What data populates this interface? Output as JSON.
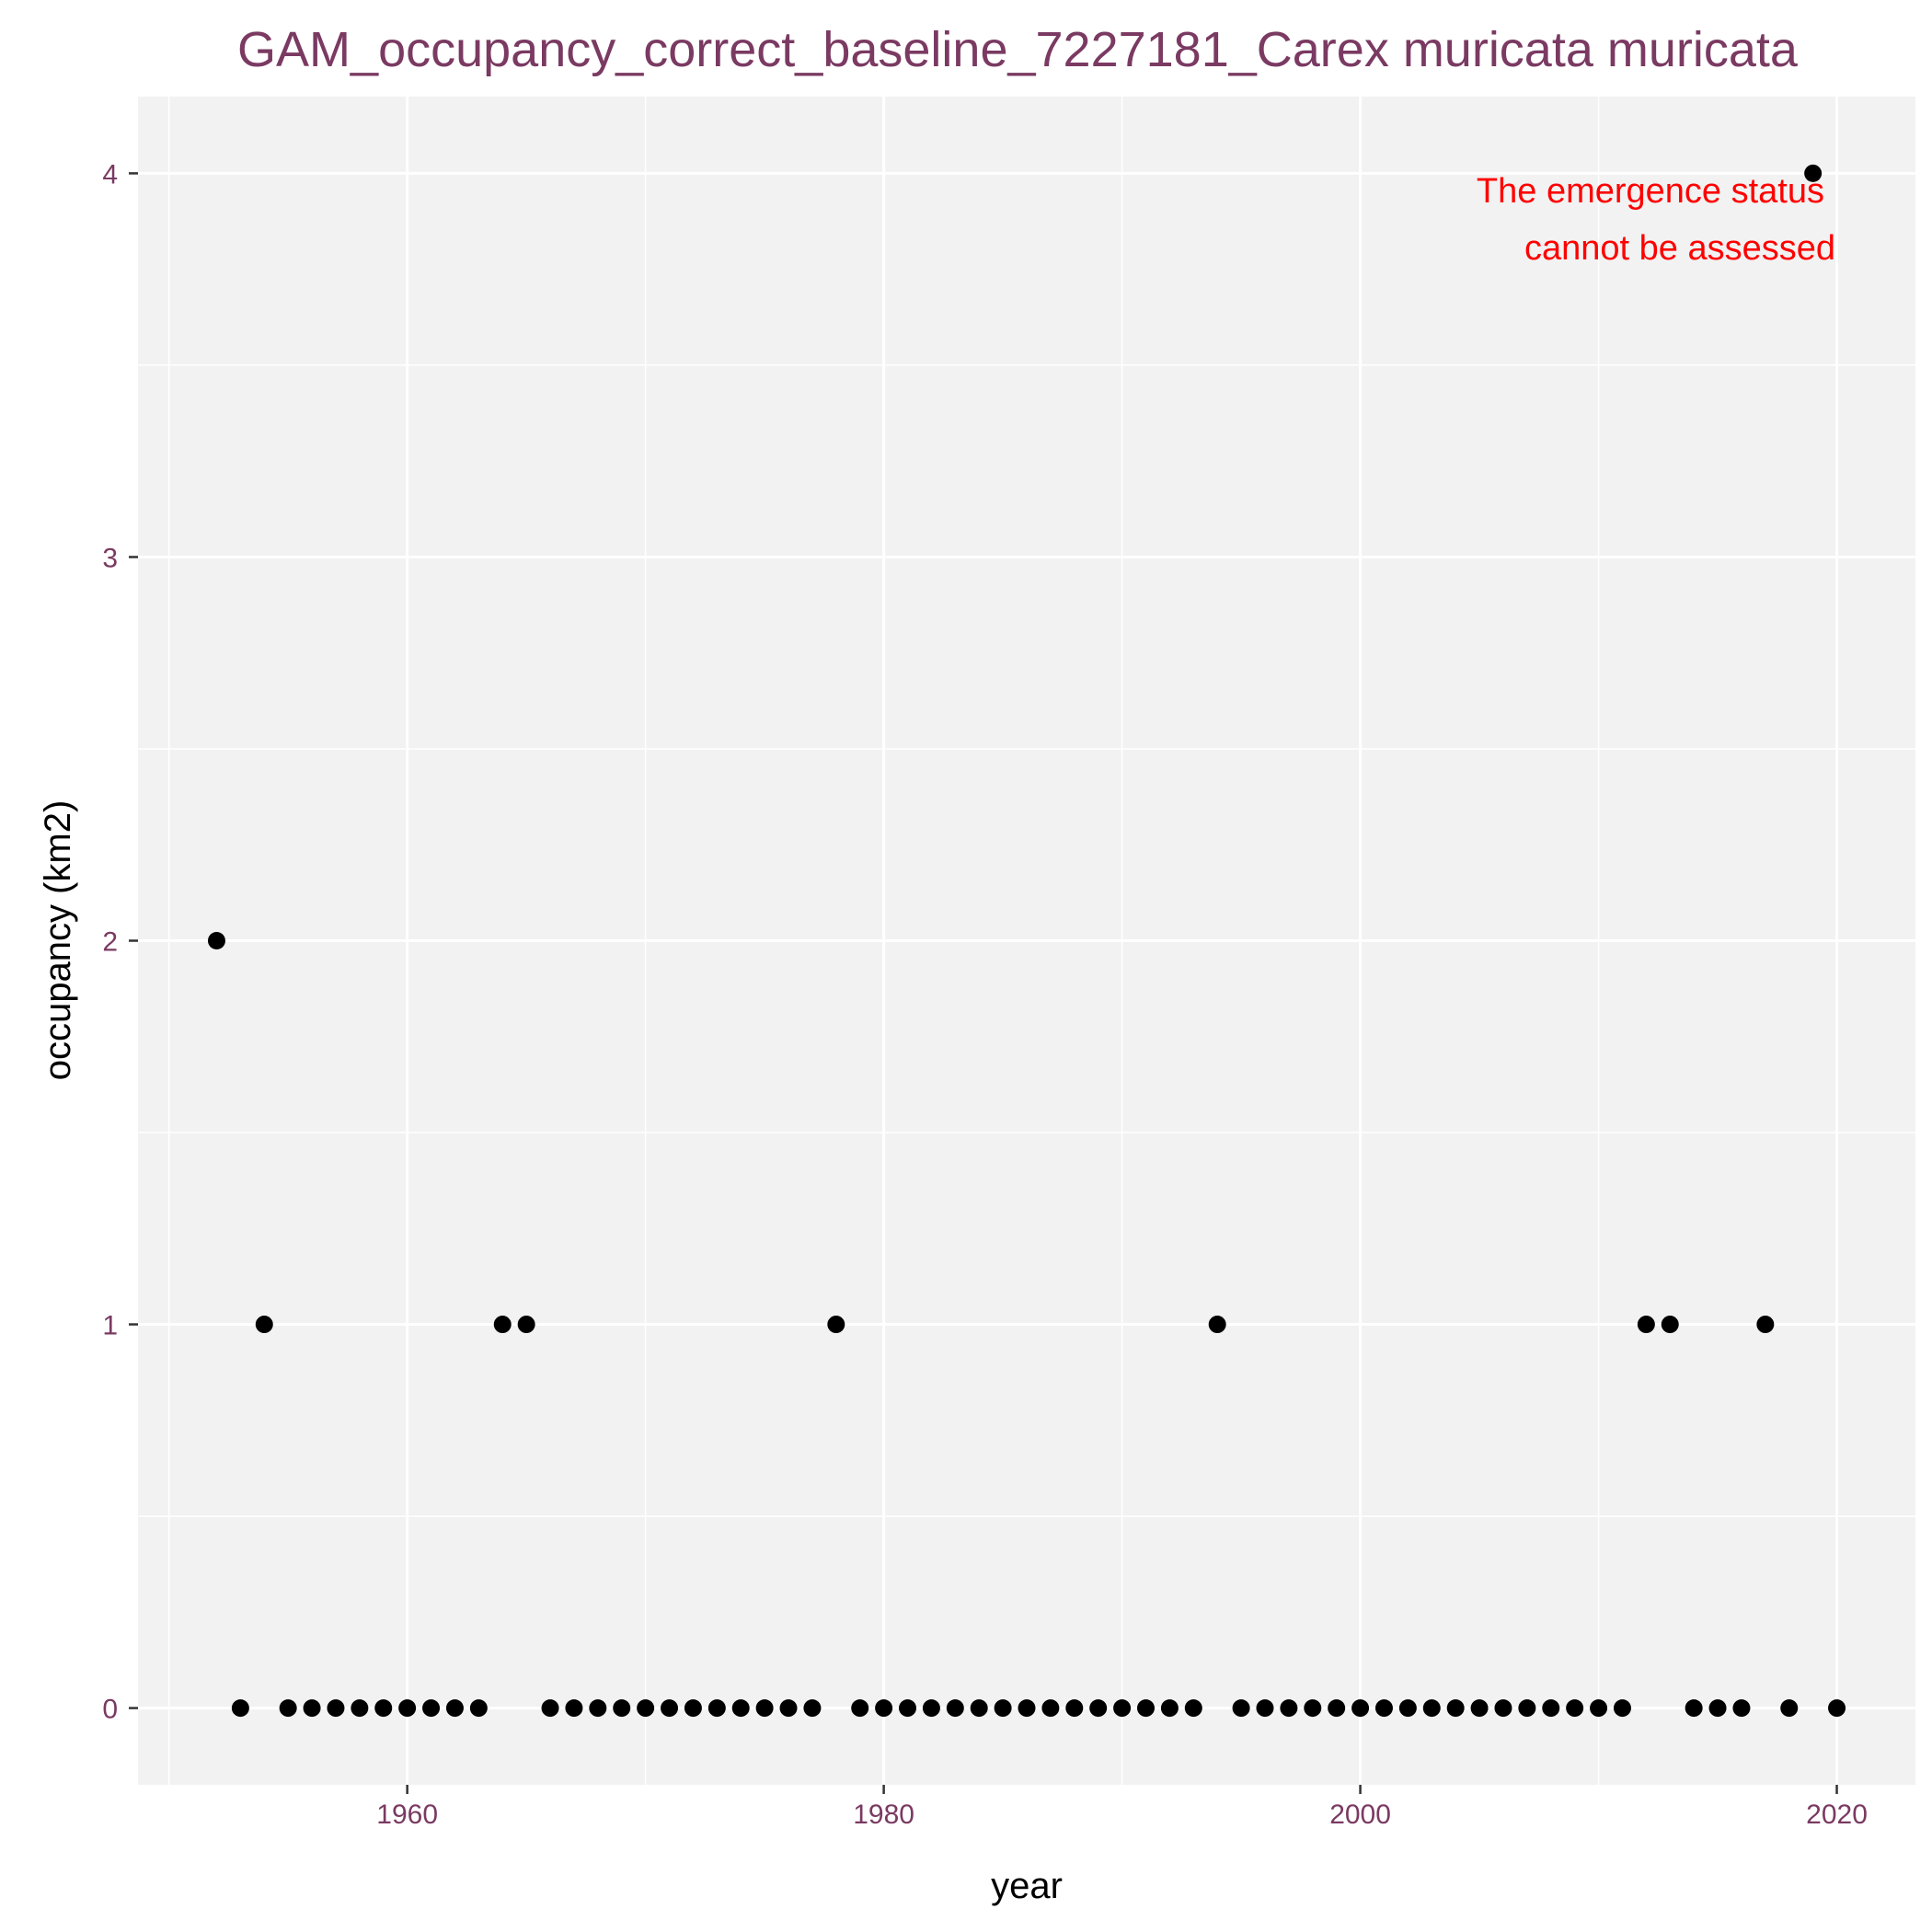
{
  "chart_data": {
    "type": "scatter",
    "title": "GAM_occupancy_correct_baseline_7227181_Carex muricata muricata",
    "xlabel": "year",
    "ylabel": "occupancy (km2)",
    "xlim": [
      1948.7,
      2023.3
    ],
    "ylim": [
      -0.2,
      4.2
    ],
    "x_ticks": [
      1960,
      1980,
      2000,
      2020
    ],
    "x_tick_labels": [
      "1960",
      "1980",
      "2000",
      "2020"
    ],
    "x_minor_ticks": [
      1950,
      1970,
      1990,
      2010
    ],
    "y_ticks": [
      0,
      1,
      2,
      3,
      4
    ],
    "y_tick_labels": [
      "0",
      "1",
      "2",
      "3",
      "4"
    ],
    "y_minor_ticks": [
      0.5,
      1.5,
      2.5,
      3.5
    ],
    "grid": true,
    "annotation": [
      "The emergence status",
      "cannot be assessed"
    ],
    "colors": {
      "title": "#7a3a62",
      "tick_label": "#7a3a62",
      "point": "#000000",
      "annotation": "#ff0000",
      "panel": "#f2f2f2",
      "gridline": "#ffffff"
    },
    "x": [
      1952,
      1953,
      1954,
      1955,
      1956,
      1957,
      1958,
      1959,
      1960,
      1961,
      1962,
      1963,
      1964,
      1965,
      1966,
      1967,
      1968,
      1969,
      1970,
      1971,
      1972,
      1973,
      1974,
      1975,
      1976,
      1977,
      1978,
      1979,
      1980,
      1981,
      1982,
      1983,
      1984,
      1985,
      1986,
      1987,
      1988,
      1989,
      1990,
      1991,
      1992,
      1993,
      1994,
      1995,
      1996,
      1997,
      1998,
      1999,
      2000,
      2001,
      2002,
      2003,
      2004,
      2005,
      2006,
      2007,
      2008,
      2009,
      2010,
      2011,
      2012,
      2013,
      2014,
      2015,
      2016,
      2017,
      2018,
      2019,
      2020
    ],
    "y": [
      2,
      0,
      1,
      0,
      0,
      0,
      0,
      0,
      0,
      0,
      0,
      0,
      1,
      1,
      0,
      0,
      0,
      0,
      0,
      0,
      0,
      0,
      0,
      0,
      0,
      0,
      1,
      0,
      0,
      0,
      0,
      0,
      0,
      0,
      0,
      0,
      0,
      0,
      0,
      0,
      0,
      0,
      1,
      0,
      0,
      0,
      0,
      0,
      0,
      0,
      0,
      0,
      0,
      0,
      0,
      0,
      0,
      0,
      0,
      0,
      1,
      1,
      0,
      0,
      0,
      1,
      0,
      4,
      0
    ]
  }
}
